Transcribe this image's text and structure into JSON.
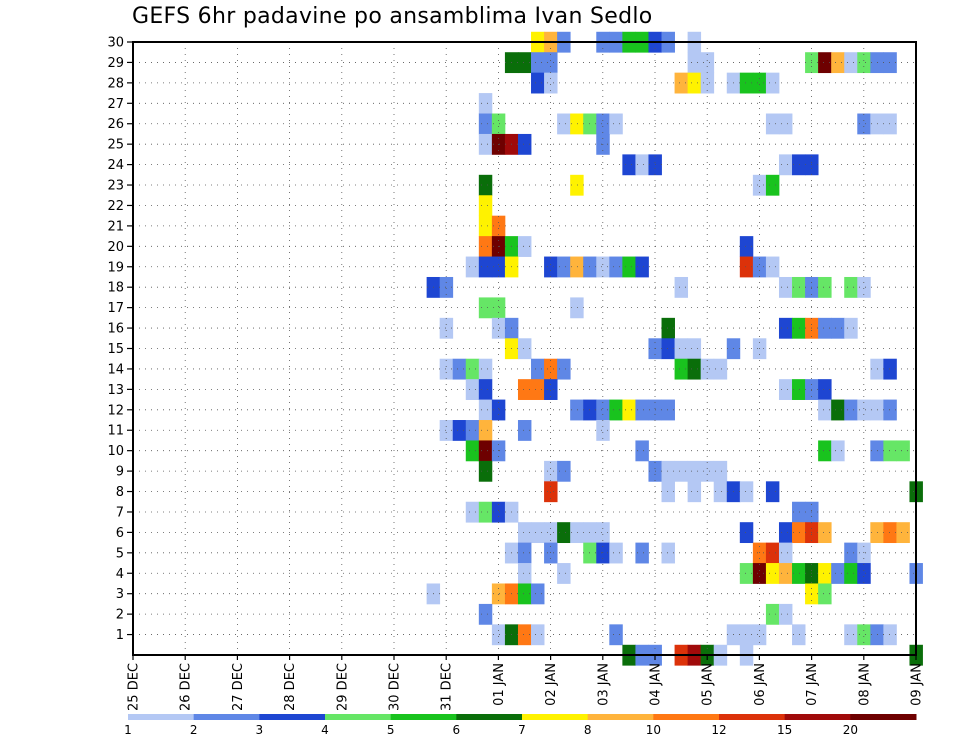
{
  "chart_data": {
    "type": "heatmap",
    "title": "GEFS 6hr padavine po ansamblima Ivan Sedlo",
    "xlabel": "",
    "ylabel": "",
    "x_ticks": [
      "25 DEC",
      "26 DEC",
      "27 DEC",
      "28 DEC",
      "29 DEC",
      "30 DEC",
      "31 DEC",
      "01 JAN",
      "02 JAN",
      "03 JAN",
      "04 JAN",
      "05 JAN",
      "06 JAN",
      "07 JAN",
      "08 JAN",
      "09 JAN"
    ],
    "x_range": [
      0,
      60
    ],
    "x_units": "6-hour steps from 25 DEC 00Z",
    "y_ticks": [
      1,
      2,
      3,
      4,
      5,
      6,
      7,
      8,
      9,
      10,
      11,
      12,
      13,
      14,
      15,
      16,
      17,
      18,
      19,
      20,
      21,
      22,
      23,
      24,
      25,
      26,
      27,
      28,
      29,
      30
    ],
    "y_range": [
      0,
      30
    ],
    "grid": true,
    "colorbar": {
      "levels": [
        "1",
        "2",
        "3",
        "4",
        "5",
        "6",
        "7",
        "8",
        "10",
        "12",
        "15",
        "20"
      ],
      "colors": [
        "#b4c8f4",
        "#5f87e6",
        "#1e46d2",
        "#66e666",
        "#19c31e",
        "#0a6e0a",
        "#fff200",
        "#ffb43c",
        "#ff7814",
        "#dc320a",
        "#a00a0a",
        "#6e0000"
      ]
    },
    "cells_format": "[ensemble_member, step_index, color_class_index]",
    "cells": [
      [
        30,
        31,
        6
      ],
      [
        30,
        32,
        7
      ],
      [
        30,
        33,
        1
      ],
      [
        30,
        36,
        1
      ],
      [
        30,
        37,
        1
      ],
      [
        30,
        38,
        4
      ],
      [
        30,
        39,
        4
      ],
      [
        30,
        40,
        2
      ],
      [
        30,
        41,
        1
      ],
      [
        30,
        43,
        0
      ],
      [
        29,
        29,
        5
      ],
      [
        29,
        30,
        5
      ],
      [
        29,
        31,
        1
      ],
      [
        29,
        32,
        1
      ],
      [
        29,
        43,
        0
      ],
      [
        29,
        44,
        0
      ],
      [
        29,
        52,
        3
      ],
      [
        29,
        53,
        11
      ],
      [
        29,
        54,
        7
      ],
      [
        29,
        55,
        0
      ],
      [
        29,
        56,
        3
      ],
      [
        29,
        57,
        1
      ],
      [
        29,
        58,
        1
      ],
      [
        28,
        31,
        2
      ],
      [
        28,
        32,
        0
      ],
      [
        28,
        42,
        7
      ],
      [
        28,
        43,
        6
      ],
      [
        28,
        44,
        0
      ],
      [
        28,
        46,
        0
      ],
      [
        28,
        47,
        4
      ],
      [
        28,
        48,
        4
      ],
      [
        28,
        49,
        0
      ],
      [
        27,
        27,
        0
      ],
      [
        26,
        27,
        1
      ],
      [
        26,
        28,
        3
      ],
      [
        26,
        33,
        0
      ],
      [
        26,
        34,
        6
      ],
      [
        26,
        35,
        3
      ],
      [
        26,
        36,
        1
      ],
      [
        26,
        37,
        0
      ],
      [
        26,
        49,
        0
      ],
      [
        26,
        50,
        0
      ],
      [
        26,
        56,
        1
      ],
      [
        26,
        57,
        0
      ],
      [
        26,
        58,
        0
      ],
      [
        25,
        27,
        0
      ],
      [
        25,
        28,
        11
      ],
      [
        25,
        29,
        10
      ],
      [
        25,
        30,
        2
      ],
      [
        25,
        36,
        1
      ],
      [
        24,
        38,
        2
      ],
      [
        24,
        39,
        0
      ],
      [
        24,
        40,
        2
      ],
      [
        24,
        50,
        0
      ],
      [
        24,
        51,
        2
      ],
      [
        24,
        52,
        2
      ],
      [
        23,
        27,
        5
      ],
      [
        23,
        34,
        6
      ],
      [
        23,
        48,
        0
      ],
      [
        23,
        49,
        4
      ],
      [
        22,
        27,
        6
      ],
      [
        21,
        27,
        6
      ],
      [
        21,
        28,
        8
      ],
      [
        20,
        27,
        8
      ],
      [
        20,
        28,
        11
      ],
      [
        20,
        29,
        4
      ],
      [
        20,
        30,
        0
      ],
      [
        20,
        47,
        2
      ],
      [
        19,
        26,
        0
      ],
      [
        19,
        27,
        2
      ],
      [
        19,
        28,
        2
      ],
      [
        19,
        29,
        6
      ],
      [
        19,
        32,
        2
      ],
      [
        19,
        33,
        1
      ],
      [
        19,
        34,
        7
      ],
      [
        19,
        35,
        1
      ],
      [
        19,
        36,
        0
      ],
      [
        19,
        37,
        1
      ],
      [
        19,
        38,
        4
      ],
      [
        19,
        39,
        2
      ],
      [
        19,
        47,
        9
      ],
      [
        19,
        48,
        1
      ],
      [
        19,
        49,
        0
      ],
      [
        18,
        23,
        2
      ],
      [
        18,
        24,
        1
      ],
      [
        18,
        42,
        0
      ],
      [
        18,
        50,
        0
      ],
      [
        18,
        51,
        3
      ],
      [
        18,
        52,
        1
      ],
      [
        18,
        53,
        3
      ],
      [
        18,
        55,
        3
      ],
      [
        18,
        56,
        0
      ],
      [
        17,
        27,
        3
      ],
      [
        17,
        28,
        3
      ],
      [
        17,
        34,
        0
      ],
      [
        16,
        24,
        0
      ],
      [
        16,
        28,
        0
      ],
      [
        16,
        29,
        1
      ],
      [
        16,
        41,
        5
      ],
      [
        16,
        50,
        2
      ],
      [
        16,
        51,
        4
      ],
      [
        16,
        52,
        8
      ],
      [
        16,
        53,
        1
      ],
      [
        16,
        54,
        1
      ],
      [
        16,
        55,
        0
      ],
      [
        15,
        29,
        6
      ],
      [
        15,
        30,
        0
      ],
      [
        15,
        40,
        1
      ],
      [
        15,
        41,
        2
      ],
      [
        15,
        42,
        0
      ],
      [
        15,
        43,
        0
      ],
      [
        15,
        46,
        1
      ],
      [
        15,
        48,
        0
      ],
      [
        14,
        24,
        0
      ],
      [
        14,
        25,
        1
      ],
      [
        14,
        26,
        3
      ],
      [
        14,
        27,
        0
      ],
      [
        14,
        31,
        1
      ],
      [
        14,
        32,
        8
      ],
      [
        14,
        33,
        1
      ],
      [
        14,
        42,
        4
      ],
      [
        14,
        43,
        5
      ],
      [
        14,
        44,
        0
      ],
      [
        14,
        45,
        0
      ],
      [
        14,
        57,
        0
      ],
      [
        14,
        58,
        2
      ],
      [
        13,
        26,
        0
      ],
      [
        13,
        27,
        2
      ],
      [
        13,
        30,
        8
      ],
      [
        13,
        31,
        8
      ],
      [
        13,
        32,
        2
      ],
      [
        13,
        50,
        0
      ],
      [
        13,
        51,
        4
      ],
      [
        13,
        52,
        1
      ],
      [
        13,
        53,
        2
      ],
      [
        12,
        27,
        0
      ],
      [
        12,
        28,
        2
      ],
      [
        12,
        34,
        1
      ],
      [
        12,
        35,
        2
      ],
      [
        12,
        36,
        1
      ],
      [
        12,
        37,
        4
      ],
      [
        12,
        38,
        6
      ],
      [
        12,
        39,
        1
      ],
      [
        12,
        40,
        1
      ],
      [
        12,
        41,
        1
      ],
      [
        12,
        53,
        0
      ],
      [
        12,
        54,
        5
      ],
      [
        12,
        55,
        1
      ],
      [
        12,
        56,
        0
      ],
      [
        12,
        57,
        0
      ],
      [
        12,
        58,
        1
      ],
      [
        11,
        24,
        0
      ],
      [
        11,
        25,
        2
      ],
      [
        11,
        26,
        1
      ],
      [
        11,
        27,
        7
      ],
      [
        11,
        30,
        1
      ],
      [
        11,
        36,
        0
      ],
      [
        10,
        26,
        4
      ],
      [
        10,
        27,
        11
      ],
      [
        10,
        28,
        1
      ],
      [
        10,
        39,
        1
      ],
      [
        10,
        53,
        4
      ],
      [
        10,
        54,
        0
      ],
      [
        10,
        57,
        1
      ],
      [
        10,
        58,
        3
      ],
      [
        10,
        59,
        3
      ],
      [
        9,
        27,
        5
      ],
      [
        9,
        32,
        0
      ],
      [
        9,
        33,
        1
      ],
      [
        9,
        40,
        1
      ],
      [
        9,
        41,
        0
      ],
      [
        9,
        42,
        0
      ],
      [
        9,
        43,
        0
      ],
      [
        9,
        44,
        0
      ],
      [
        9,
        45,
        0
      ],
      [
        8,
        32,
        9
      ],
      [
        8,
        41,
        0
      ],
      [
        8,
        43,
        0
      ],
      [
        8,
        45,
        0
      ],
      [
        8,
        46,
        2
      ],
      [
        8,
        47,
        0
      ],
      [
        8,
        49,
        2
      ],
      [
        8,
        60,
        5
      ],
      [
        7,
        26,
        0
      ],
      [
        7,
        27,
        3
      ],
      [
        7,
        28,
        2
      ],
      [
        7,
        29,
        0
      ],
      [
        7,
        51,
        1
      ],
      [
        7,
        52,
        1
      ],
      [
        6,
        30,
        0
      ],
      [
        6,
        31,
        0
      ],
      [
        6,
        32,
        0
      ],
      [
        6,
        33,
        5
      ],
      [
        6,
        34,
        0
      ],
      [
        6,
        35,
        0
      ],
      [
        6,
        36,
        0
      ],
      [
        6,
        47,
        2
      ],
      [
        6,
        50,
        2
      ],
      [
        6,
        51,
        8
      ],
      [
        6,
        52,
        9
      ],
      [
        6,
        53,
        7
      ],
      [
        6,
        57,
        7
      ],
      [
        6,
        58,
        8
      ],
      [
        6,
        59,
        7
      ],
      [
        5,
        29,
        0
      ],
      [
        5,
        30,
        1
      ],
      [
        5,
        32,
        1
      ],
      [
        5,
        35,
        3
      ],
      [
        5,
        36,
        2
      ],
      [
        5,
        37,
        0
      ],
      [
        5,
        39,
        1
      ],
      [
        5,
        41,
        0
      ],
      [
        5,
        48,
        8
      ],
      [
        5,
        49,
        9
      ],
      [
        5,
        50,
        0
      ],
      [
        5,
        55,
        1
      ],
      [
        5,
        56,
        0
      ],
      [
        4,
        30,
        0
      ],
      [
        4,
        33,
        0
      ],
      [
        4,
        47,
        3
      ],
      [
        4,
        48,
        11
      ],
      [
        4,
        49,
        6
      ],
      [
        4,
        50,
        7
      ],
      [
        4,
        51,
        4
      ],
      [
        4,
        52,
        5
      ],
      [
        4,
        53,
        6
      ],
      [
        4,
        54,
        1
      ],
      [
        4,
        55,
        4
      ],
      [
        4,
        56,
        2
      ],
      [
        4,
        60,
        1
      ],
      [
        3,
        23,
        0
      ],
      [
        3,
        28,
        7
      ],
      [
        3,
        29,
        8
      ],
      [
        3,
        30,
        4
      ],
      [
        3,
        31,
        1
      ],
      [
        3,
        52,
        6
      ],
      [
        3,
        53,
        3
      ],
      [
        2,
        27,
        1
      ],
      [
        2,
        49,
        3
      ],
      [
        2,
        50,
        0
      ],
      [
        1,
        28,
        0
      ],
      [
        1,
        29,
        5
      ],
      [
        1,
        30,
        8
      ],
      [
        1,
        31,
        0
      ],
      [
        1,
        37,
        1
      ],
      [
        1,
        46,
        0
      ],
      [
        1,
        47,
        0
      ],
      [
        1,
        48,
        0
      ],
      [
        1,
        51,
        0
      ],
      [
        1,
        55,
        0
      ],
      [
        1,
        56,
        3
      ],
      [
        1,
        57,
        1
      ],
      [
        1,
        58,
        0
      ],
      [
        0,
        38,
        5
      ],
      [
        0,
        39,
        1
      ],
      [
        0,
        40,
        1
      ],
      [
        0,
        42,
        9
      ],
      [
        0,
        43,
        10
      ],
      [
        0,
        44,
        5
      ],
      [
        0,
        45,
        0
      ],
      [
        0,
        47,
        0
      ],
      [
        0,
        60,
        5
      ]
    ]
  }
}
